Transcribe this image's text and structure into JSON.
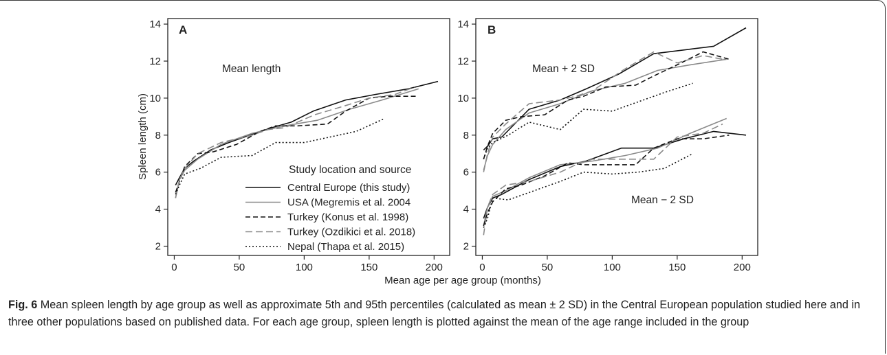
{
  "figure": {
    "caption_label": "Fig. 6",
    "caption_text": " Mean spleen length by age group as well as approximate 5th and 95th percentiles (calculated as mean ± 2 SD) in the Central European population studied here and in three other populations based on published data. For each age group, spleen length is plotted against the mean of the age range included in the group"
  },
  "chart_data": [
    {
      "panel": "A",
      "type": "line",
      "ylabel": "Spleen length (cm)",
      "xlabel": "Mean age per age group (months)",
      "xlim": [
        -5,
        212
      ],
      "ylim": [
        1.5,
        14.3
      ],
      "xticks": [
        0,
        50,
        100,
        150,
        200
      ],
      "yticks": [
        2,
        4,
        6,
        8,
        10,
        12,
        14
      ],
      "annotation": "Mean length",
      "legend": {
        "title": "Study location and source",
        "placement": "bottom-right",
        "entries": [
          "Central Europe (this study)",
          "USA (Megremis et al. 2004",
          "Turkey (Konus et al. 1998)",
          "Turkey (Ozdikici et al. 2018)",
          "Nepal (Thapa et al. 2015)"
        ]
      },
      "series": [
        {
          "name": "Central Europe (this study)",
          "color": "#111111",
          "dash": "none",
          "x": [
            1,
            4,
            8,
            15,
            28,
            42,
            62,
            75,
            90,
            107,
            132,
            155,
            180,
            203
          ],
          "y": [
            5.3,
            5.7,
            6.2,
            6.6,
            7.2,
            7.6,
            8.1,
            8.4,
            8.7,
            9.3,
            9.9,
            10.2,
            10.5,
            10.9
          ]
        },
        {
          "name": "USA (Megremis et al. 2004",
          "color": "#8a8a8a",
          "dash": "none",
          "x": [
            1,
            4,
            8,
            18,
            36,
            60,
            85,
            110,
            135,
            160,
            188
          ],
          "y": [
            4.6,
            5.6,
            6.1,
            6.7,
            7.5,
            8.1,
            8.5,
            8.8,
            9.4,
            9.9,
            10.5
          ]
        },
        {
          "name": "Turkey (Konus et al. 1998)",
          "color": "#111111",
          "dash": "7,4",
          "x": [
            1,
            4,
            8,
            18,
            30,
            48,
            66,
            78,
            95,
            118,
            132,
            150,
            165,
            186
          ],
          "y": [
            4.9,
            5.5,
            6.3,
            7.0,
            7.1,
            7.5,
            8.2,
            8.5,
            8.5,
            8.6,
            9.3,
            10.0,
            10.1,
            10.1
          ]
        },
        {
          "name": "Turkey (Ozdikici et al. 2018)",
          "color": "#8a8a8a",
          "dash": "10,5",
          "x": [
            1,
            4,
            8,
            18,
            36,
            60,
            72,
            85,
            108,
            132,
            150,
            170,
            185
          ],
          "y": [
            4.6,
            5.6,
            6.2,
            7.0,
            7.6,
            8.0,
            8.3,
            8.4,
            9.1,
            9.6,
            10.0,
            10.2,
            10.6
          ]
        },
        {
          "name": "Nepal (Thapa et al. 2015)",
          "color": "#111111",
          "dash": "2,3",
          "x": [
            1,
            4,
            8,
            20,
            36,
            60,
            78,
            100,
            120,
            140,
            162
          ],
          "y": [
            4.8,
            5.3,
            5.9,
            6.2,
            6.8,
            6.9,
            7.6,
            7.6,
            7.9,
            8.2,
            8.9
          ]
        }
      ]
    },
    {
      "panel": "B",
      "type": "line",
      "xlim": [
        -5,
        212
      ],
      "ylim": [
        1.5,
        14.3
      ],
      "xticks": [
        0,
        50,
        100,
        150,
        200
      ],
      "yticks": [
        2,
        4,
        6,
        8,
        10,
        12,
        14
      ],
      "annotations": [
        "Mean + 2 SD",
        "Mean − 2 SD"
      ],
      "series": [
        {
          "name": "Central Europe (this study)",
          "group": "upper",
          "color": "#111111",
          "dash": "none",
          "x": [
            1,
            4,
            8,
            15,
            36,
            60,
            80,
            105,
            132,
            155,
            178,
            203
          ],
          "y": [
            7.2,
            7.4,
            7.8,
            7.9,
            9.4,
            9.9,
            10.5,
            11.3,
            12.4,
            12.6,
            12.8,
            13.8
          ]
        },
        {
          "name": "USA (Megremis et al. 2004",
          "group": "upper",
          "color": "#8a8a8a",
          "dash": "none",
          "x": [
            1,
            4,
            8,
            18,
            36,
            60,
            85,
            110,
            135,
            160,
            188
          ],
          "y": [
            6.1,
            6.9,
            7.5,
            8.3,
            9.2,
            9.7,
            10.4,
            10.8,
            11.5,
            11.8,
            12.1
          ]
        },
        {
          "name": "Turkey (Konus et al. 1998)",
          "group": "upper",
          "color": "#111111",
          "dash": "7,4",
          "x": [
            1,
            4,
            8,
            18,
            30,
            48,
            66,
            78,
            95,
            118,
            132,
            150,
            170,
            190
          ],
          "y": [
            6.7,
            7.4,
            8.1,
            8.8,
            9.0,
            9.1,
            9.9,
            10.1,
            10.6,
            10.7,
            11.2,
            11.8,
            12.5,
            12.1
          ]
        },
        {
          "name": "Turkey (Ozdikici et al. 2018)",
          "group": "upper",
          "color": "#8a8a8a",
          "dash": "10,5",
          "x": [
            1,
            4,
            8,
            18,
            36,
            60,
            72,
            85,
            108,
            132,
            150,
            170,
            185
          ],
          "y": [
            6.0,
            7.0,
            7.9,
            8.6,
            9.7,
            9.9,
            10.1,
            10.4,
            11.5,
            12.5,
            11.9,
            12.3,
            12.1
          ]
        },
        {
          "name": "Nepal (Thapa et al. 2015)",
          "group": "upper",
          "color": "#111111",
          "dash": "2,3",
          "x": [
            1,
            4,
            8,
            20,
            36,
            60,
            78,
            100,
            120,
            140,
            162
          ],
          "y": [
            6.7,
            7.3,
            7.6,
            8.0,
            8.7,
            8.3,
            9.4,
            9.3,
            9.8,
            10.3,
            10.8
          ]
        },
        {
          "name": "Central Europe (this study)",
          "group": "lower",
          "color": "#111111",
          "dash": "none",
          "x": [
            1,
            4,
            8,
            15,
            36,
            60,
            80,
            107,
            132,
            155,
            178,
            203
          ],
          "y": [
            3.5,
            4.1,
            4.6,
            4.8,
            5.6,
            6.3,
            6.6,
            7.3,
            7.3,
            7.8,
            8.2,
            8.0
          ]
        },
        {
          "name": "USA (Megremis et al. 2004",
          "group": "lower",
          "color": "#8a8a8a",
          "dash": "none",
          "x": [
            1,
            4,
            8,
            18,
            36,
            60,
            85,
            110,
            135,
            160,
            188
          ],
          "y": [
            3.1,
            4.1,
            4.7,
            5.0,
            5.7,
            6.4,
            6.6,
            6.9,
            7.3,
            8.1,
            8.9
          ]
        },
        {
          "name": "Turkey (Konus et al. 1998)",
          "group": "lower",
          "color": "#111111",
          "dash": "7,4",
          "x": [
            1,
            4,
            8,
            18,
            30,
            48,
            66,
            78,
            95,
            118,
            132,
            150,
            170,
            190
          ],
          "y": [
            3.1,
            3.8,
            4.4,
            5.1,
            5.3,
            5.8,
            6.5,
            6.4,
            6.4,
            6.4,
            7.3,
            7.8,
            7.8,
            8.0
          ]
        },
        {
          "name": "Turkey (Ozdikici et al. 2018)",
          "group": "lower",
          "color": "#8a8a8a",
          "dash": "10,5",
          "x": [
            1,
            4,
            8,
            18,
            36,
            60,
            72,
            85,
            108,
            132,
            150,
            170,
            185
          ],
          "y": [
            2.6,
            4.1,
            4.8,
            5.3,
            5.5,
            6.0,
            6.4,
            6.7,
            6.7,
            6.7,
            7.9,
            8.1,
            8.6
          ]
        },
        {
          "name": "Nepal (Thapa et al. 2015)",
          "group": "lower",
          "color": "#111111",
          "dash": "2,3",
          "x": [
            1,
            4,
            8,
            20,
            36,
            60,
            78,
            100,
            120,
            140,
            162
          ],
          "y": [
            3.0,
            3.5,
            4.6,
            4.5,
            4.9,
            5.5,
            6.0,
            5.9,
            6.0,
            6.2,
            7.0
          ]
        }
      ]
    }
  ],
  "panel_labels": {
    "a": "A",
    "b": "B"
  }
}
